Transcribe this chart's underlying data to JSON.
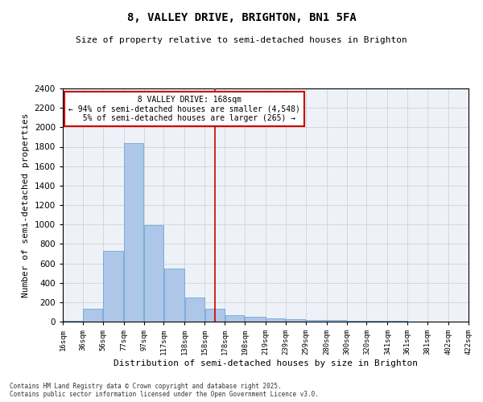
{
  "title": "8, VALLEY DRIVE, BRIGHTON, BN1 5FA",
  "subtitle": "Size of property relative to semi-detached houses in Brighton",
  "xlabel": "Distribution of semi-detached houses by size in Brighton",
  "ylabel": "Number of semi-detached properties",
  "property_size": 168,
  "property_label": "8 VALLEY DRIVE: 168sqm",
  "pct_smaller": 94,
  "n_smaller": 4548,
  "pct_larger": 5,
  "n_larger": 265,
  "bin_edges": [
    16,
    36,
    56,
    77,
    97,
    117,
    138,
    158,
    178,
    198,
    219,
    239,
    259,
    280,
    300,
    320,
    341,
    361,
    381,
    402,
    422
  ],
  "bin_labels": [
    "16sqm",
    "36sqm",
    "56sqm",
    "77sqm",
    "97sqm",
    "117sqm",
    "138sqm",
    "158sqm",
    "178sqm",
    "198sqm",
    "219sqm",
    "239sqm",
    "259sqm",
    "280sqm",
    "300sqm",
    "320sqm",
    "341sqm",
    "361sqm",
    "381sqm",
    "402sqm",
    "422sqm"
  ],
  "bar_values": [
    10,
    130,
    730,
    1840,
    990,
    550,
    250,
    130,
    65,
    50,
    35,
    25,
    20,
    15,
    10,
    5,
    5,
    2,
    0,
    0
  ],
  "bar_color": "#aec6e8",
  "bar_edge_color": "#5a9fd4",
  "grid_color": "#cccccc",
  "vline_color": "#cc0000",
  "box_color": "#cc0000",
  "ylim": [
    0,
    2400
  ],
  "yticks": [
    0,
    200,
    400,
    600,
    800,
    1000,
    1200,
    1400,
    1600,
    1800,
    2000,
    2200,
    2400
  ],
  "background_color": "#eef2f8",
  "footer_line1": "Contains HM Land Registry data © Crown copyright and database right 2025.",
  "footer_line2": "Contains public sector information licensed under the Open Government Licence v3.0."
}
